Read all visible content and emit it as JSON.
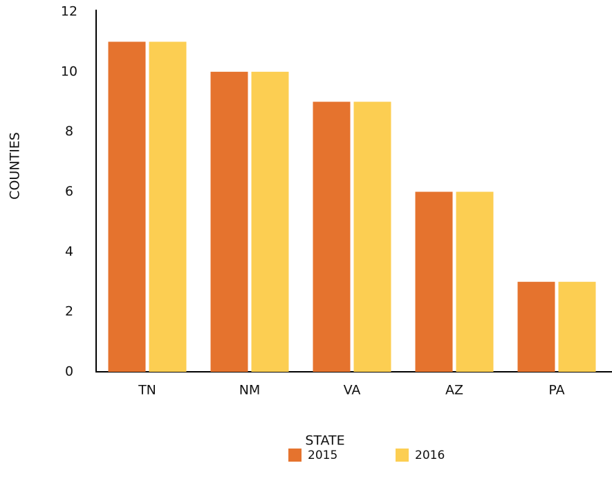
{
  "chart_data": {
    "type": "bar",
    "x_label": "STATE",
    "y_label": "COUNTIES",
    "categories": [
      "TN",
      "NM",
      "VA",
      "AZ",
      "PA"
    ],
    "series": [
      {
        "name": "2015",
        "color": "#e5732e",
        "values": [
          11,
          10,
          9,
          6,
          3
        ]
      },
      {
        "name": "2016",
        "color": "#fcce52",
        "values": [
          11,
          10,
          9,
          6,
          3
        ]
      }
    ],
    "ylim": [
      0,
      12
    ],
    "yticks": [
      0,
      2,
      4,
      6,
      8,
      10,
      12
    ],
    "grid": false
  }
}
